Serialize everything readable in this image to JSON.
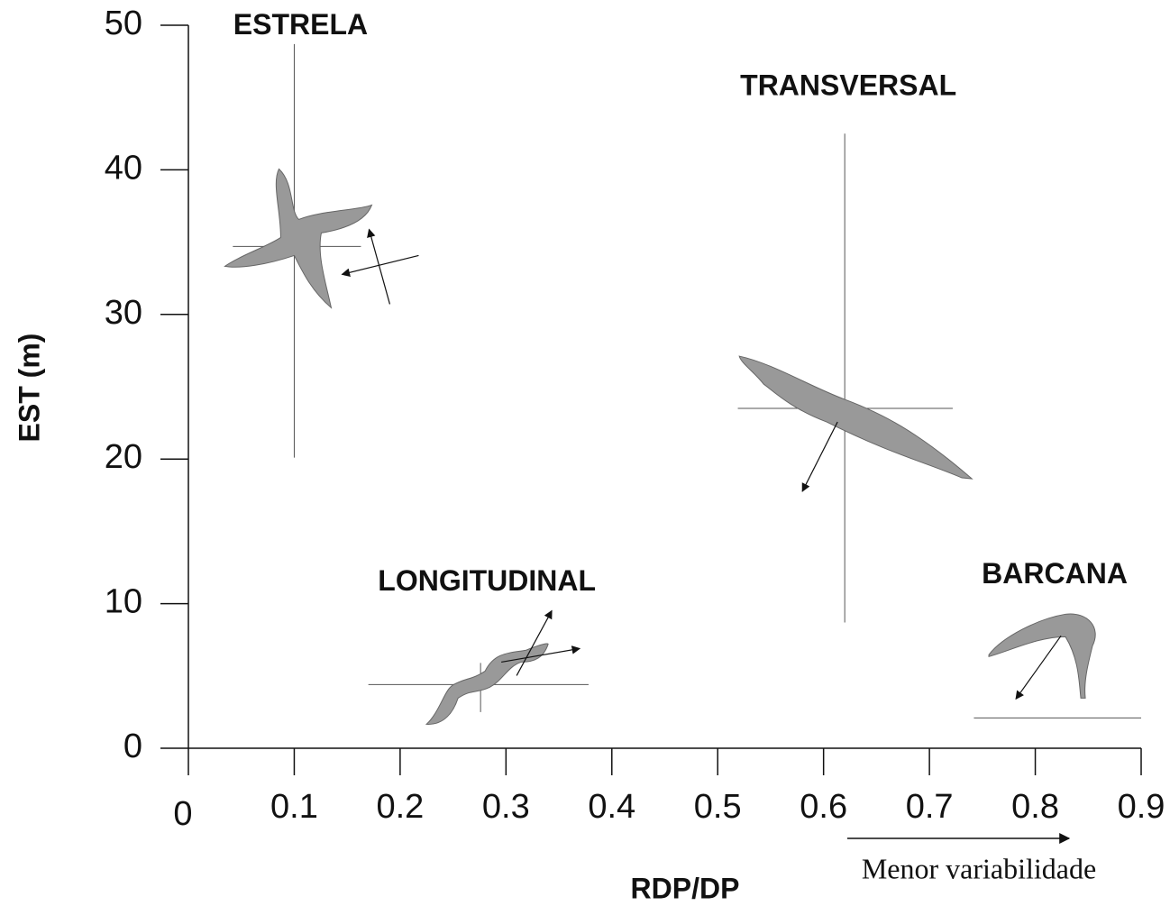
{
  "chart_data": {
    "type": "scatter",
    "xlabel": "RDP/DP",
    "ylabel": "EST (m)",
    "annotation": "Menor variabilidade",
    "xlim": [
      0,
      0.9
    ],
    "xticks": [
      0,
      0.1,
      0.2,
      0.3,
      0.4,
      0.5,
      0.6,
      0.7,
      0.8,
      0.9
    ],
    "ylim": [
      0,
      50
    ],
    "yticks": [
      0,
      10,
      20,
      30,
      40,
      50
    ],
    "color": "#999999",
    "points": [
      {
        "label": "ESTRELA",
        "x": 0.1,
        "y": 34.7,
        "xrange": [
          0.042,
          0.163
        ],
        "yrange": [
          20.1,
          48.7
        ]
      },
      {
        "label": "TRANSVERSAL",
        "x": 0.62,
        "y": 23.5,
        "xrange": [
          0.519,
          0.722
        ],
        "yrange": [
          8.7,
          42.5
        ]
      },
      {
        "label": "LONGITUDINAL",
        "x": 0.276,
        "y": 4.4,
        "xrange": [
          0.17,
          0.378
        ],
        "yrange": [
          2.5,
          5.9
        ]
      },
      {
        "label": "BARCANA",
        "x": 0.82,
        "y": 2.1,
        "xrange": [
          0.742,
          0.9
        ]
      }
    ]
  }
}
